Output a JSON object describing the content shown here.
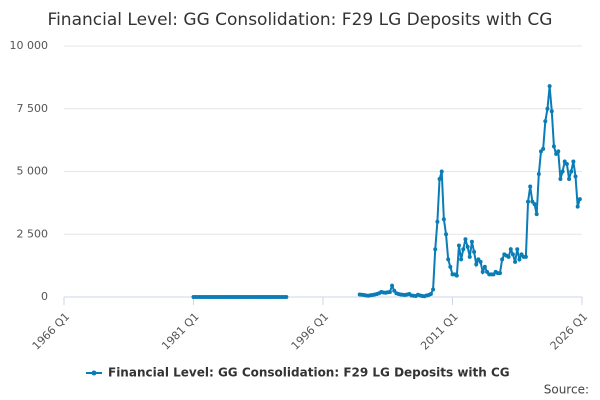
{
  "chart_data": {
    "type": "line",
    "title": "Financial Level: GG Consolidation: F29 LG Deposits with CG",
    "source": "Source:",
    "x": [
      "1981 Q1",
      "1981 Q2",
      "1981 Q3",
      "1981 Q4",
      "1982 Q1",
      "1982 Q2",
      "1982 Q3",
      "1982 Q4",
      "1983 Q1",
      "1983 Q2",
      "1983 Q3",
      "1983 Q4",
      "1984 Q1",
      "1984 Q2",
      "1984 Q3",
      "1984 Q4",
      "1985 Q1",
      "1985 Q2",
      "1985 Q3",
      "1985 Q4",
      "1986 Q1",
      "1986 Q2",
      "1986 Q3",
      "1986 Q4",
      "1987 Q1",
      "1987 Q2",
      "1987 Q3",
      "1987 Q4",
      "1988 Q1",
      "1988 Q2",
      "1988 Q3",
      "1988 Q4",
      "1989 Q1",
      "1989 Q2",
      "1989 Q3",
      "1989 Q4",
      "1990 Q1",
      "1990 Q2",
      "1990 Q3",
      "1990 Q4",
      "1991 Q1",
      "1991 Q2",
      "1991 Q3",
      "1991 Q4",
      "1992 Q1",
      "1992 Q2",
      "1992 Q3",
      "1992 Q4",
      "1993 Q1",
      "1993 Q2",
      "1993 Q3",
      "1993 Q4",
      "1994 Q1",
      "1994 Q2",
      "1994 Q3",
      "1994 Q4",
      "1995 Q1",
      "1995 Q2",
      "1995 Q3",
      "1995 Q4",
      "1996 Q1",
      "1996 Q2",
      "1996 Q3",
      "1996 Q4",
      "1997 Q1",
      "1997 Q2",
      "1997 Q3",
      "1997 Q4",
      "1998 Q1",
      "1998 Q2",
      "1998 Q3",
      "1998 Q4",
      "1999 Q1",
      "1999 Q2",
      "1999 Q3",
      "1999 Q4",
      "2000 Q1",
      "2000 Q2",
      "2000 Q3",
      "2000 Q4",
      "2001 Q1",
      "2001 Q2",
      "2001 Q3",
      "2001 Q4",
      "2002 Q1",
      "2002 Q2",
      "2002 Q3",
      "2002 Q4",
      "2003 Q1",
      "2003 Q2",
      "2003 Q3",
      "2003 Q4",
      "2004 Q1",
      "2004 Q2",
      "2004 Q3",
      "2004 Q4",
      "2005 Q1",
      "2005 Q2",
      "2005 Q3",
      "2005 Q4",
      "2006 Q1",
      "2006 Q2",
      "2006 Q3",
      "2006 Q4",
      "2007 Q1",
      "2007 Q2",
      "2007 Q3",
      "2007 Q4",
      "2008 Q1",
      "2008 Q2",
      "2008 Q3",
      "2008 Q4",
      "2009 Q1",
      "2009 Q2",
      "2009 Q3",
      "2009 Q4",
      "2010 Q1",
      "2010 Q2",
      "2010 Q3",
      "2010 Q4",
      "2011 Q1",
      "2011 Q2",
      "2011 Q3",
      "2011 Q4",
      "2012 Q1",
      "2012 Q2",
      "2012 Q3",
      "2012 Q4",
      "2013 Q1",
      "2013 Q2",
      "2013 Q3",
      "2013 Q4",
      "2014 Q1",
      "2014 Q2",
      "2014 Q3",
      "2014 Q4",
      "2015 Q1",
      "2015 Q2",
      "2015 Q3",
      "2015 Q4",
      "2016 Q1",
      "2016 Q2",
      "2016 Q3",
      "2016 Q4",
      "2017 Q1",
      "2017 Q2",
      "2017 Q3",
      "2017 Q4",
      "2018 Q1",
      "2018 Q2",
      "2018 Q3",
      "2018 Q4",
      "2019 Q1",
      "2019 Q2",
      "2019 Q3",
      "2019 Q4",
      "2020 Q1",
      "2020 Q2",
      "2020 Q3",
      "2020 Q4",
      "2021 Q1",
      "2021 Q2",
      "2021 Q3",
      "2021 Q4",
      "2022 Q1",
      "2022 Q2",
      "2022 Q3",
      "2022 Q4",
      "2023 Q1",
      "2023 Q2",
      "2023 Q3",
      "2023 Q4",
      "2024 Q1",
      "2024 Q2",
      "2024 Q3",
      "2024 Q4",
      "2025 Q1",
      "2025 Q2",
      "2025 Q3",
      "2025 Q4"
    ],
    "series": [
      {
        "name": "Financial Level: GG Consolidation: F29 LG Deposits with CG",
        "color": "#0a7cb6",
        "values": [
          0,
          0,
          0,
          0,
          0,
          0,
          0,
          0,
          0,
          0,
          0,
          0,
          0,
          0,
          0,
          0,
          0,
          0,
          0,
          0,
          0,
          0,
          0,
          0,
          0,
          0,
          0,
          0,
          0,
          0,
          0,
          0,
          0,
          0,
          0,
          0,
          0,
          0,
          0,
          0,
          0,
          0,
          0,
          0,
          null,
          null,
          null,
          null,
          null,
          null,
          null,
          null,
          null,
          null,
          null,
          null,
          null,
          null,
          null,
          null,
          null,
          null,
          null,
          null,
          null,
          null,
          null,
          null,
          null,
          null,
          null,
          null,
          null,
          null,
          null,
          null,
          null,
          100,
          90,
          80,
          60,
          50,
          70,
          80,
          100,
          120,
          150,
          200,
          180,
          170,
          190,
          200,
          450,
          250,
          150,
          120,
          100,
          90,
          80,
          100,
          120,
          60,
          50,
          40,
          90,
          60,
          40,
          30,
          60,
          80,
          120,
          300,
          1900,
          3000,
          4700,
          5000,
          3100,
          2500,
          1500,
          1200,
          900,
          900,
          850,
          2050,
          1500,
          1900,
          2300,
          2000,
          1600,
          2200,
          1800,
          1300,
          1500,
          1400,
          1000,
          1200,
          1000,
          900,
          900,
          900,
          1000,
          950,
          950,
          1500,
          1700,
          1650,
          1600,
          1900,
          1700,
          1400,
          1900,
          1500,
          1700,
          1600,
          1600,
          3800,
          4400,
          3800,
          3700,
          3300,
          4900,
          5800,
          5900,
          7000,
          7500,
          8400,
          7400,
          6000,
          5700,
          5800,
          4700,
          5000,
          5400,
          5300,
          4700,
          5000,
          5400,
          4800,
          3600,
          3900
        ]
      }
    ],
    "xlim": [
      "1966 Q1",
      "2026 Q1"
    ],
    "xticks": [
      "1966 Q1",
      "1981 Q1",
      "1996 Q1",
      "2011 Q1",
      "2026 Q1"
    ],
    "ylim": [
      0,
      10000
    ],
    "yticks": [
      0,
      {
        "value": 2500,
        "label": "2 500"
      },
      {
        "value": 5000,
        "label": "5 000"
      },
      {
        "value": 7500,
        "label": "7 500"
      },
      {
        "value": 10000,
        "label": "10 000"
      }
    ],
    "grid": true,
    "legend": "bottom"
  }
}
